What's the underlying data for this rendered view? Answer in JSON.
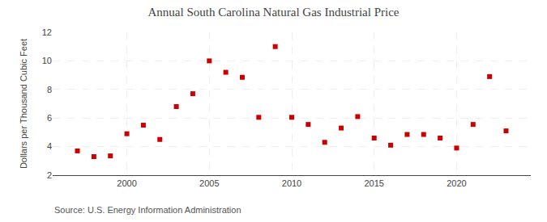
{
  "chart_data": {
    "type": "scatter",
    "title": "Annual South Carolina Natural Gas Industrial Price",
    "ylabel": "Dollars per Thousand Cubic Feet",
    "annotations": [
      "Source: U.S. Energy Information Administration"
    ],
    "x": [
      1997,
      1998,
      1999,
      2000,
      2001,
      2002,
      2003,
      2004,
      2005,
      2006,
      2007,
      2008,
      2009,
      2010,
      2011,
      2012,
      2013,
      2014,
      2015,
      2016,
      2017,
      2018,
      2019,
      2020,
      2021,
      2022,
      2023
    ],
    "values": [
      3.7,
      3.3,
      3.35,
      4.9,
      5.5,
      4.5,
      6.8,
      7.7,
      10.0,
      9.2,
      8.85,
      6.05,
      11.0,
      6.05,
      5.55,
      4.3,
      5.3,
      6.1,
      4.6,
      4.1,
      4.85,
      4.85,
      4.6,
      3.9,
      5.55,
      8.9,
      5.1
    ],
    "color": "#cc0000",
    "marker": "square",
    "xlim": [
      1995.5,
      2024.5
    ],
    "ylim": [
      2,
      12
    ],
    "xticks": [
      2000,
      2005,
      2010,
      2015,
      2020
    ],
    "yticks": [
      2,
      4,
      6,
      8,
      10,
      12
    ],
    "grid": true
  }
}
